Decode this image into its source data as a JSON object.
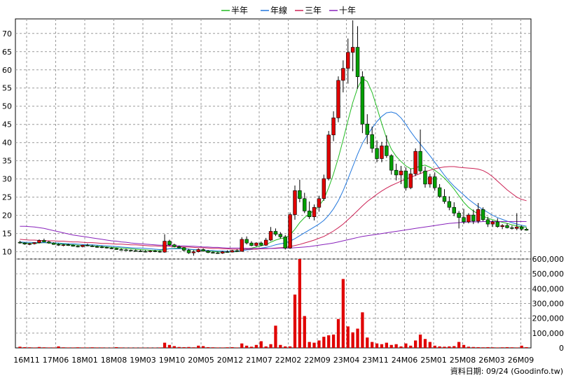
{
  "chart_data": {
    "type": "candlestick",
    "legend": [
      {
        "label": "半年",
        "color": "#22bb22"
      },
      {
        "label": "年線",
        "color": "#2277dd"
      },
      {
        "label": "三年",
        "color": "#cc2255"
      },
      {
        "label": "十年",
        "color": "#8822bb"
      }
    ],
    "x_tick_labels": [
      "16M11",
      "17M06",
      "18M01",
      "18M08",
      "19M03",
      "19M10",
      "20M05",
      "20M12",
      "21M07",
      "22M02",
      "22M09",
      "23M04",
      "23M11",
      "24M06",
      "25M01",
      "25M08",
      "26M03",
      "26M09"
    ],
    "price_axis": {
      "ticks": [
        10,
        15,
        20,
        25,
        30,
        35,
        40,
        45,
        50,
        55,
        60,
        65,
        70
      ],
      "ylim": [
        8,
        74
      ]
    },
    "volume_axis": {
      "tick_labels": [
        "0",
        "100,000",
        "200,000",
        "300,000",
        "400,000",
        "500,000",
        "600,000"
      ],
      "ylim": [
        0,
        600000
      ]
    },
    "footer": "資料日期: 09/24  (Goodinfo.tw)",
    "candles": [
      [
        12.6,
        13.0,
        12.2,
        12.4
      ],
      [
        12.4,
        12.6,
        11.9,
        12.1
      ],
      [
        12.1,
        12.4,
        11.8,
        12.2
      ],
      [
        12.2,
        12.6,
        12.0,
        12.5
      ],
      [
        12.5,
        13.4,
        12.3,
        13.1
      ],
      [
        13.1,
        13.6,
        12.6,
        12.7
      ],
      [
        12.7,
        13.0,
        12.2,
        12.4
      ],
      [
        12.4,
        12.6,
        11.9,
        12.0
      ],
      [
        12.0,
        12.3,
        11.6,
        11.8
      ],
      [
        11.8,
        12.1,
        11.5,
        11.9
      ],
      [
        11.9,
        12.2,
        11.6,
        11.8
      ],
      [
        11.8,
        12.0,
        11.4,
        11.5
      ],
      [
        11.5,
        11.8,
        11.2,
        11.4
      ],
      [
        11.4,
        11.9,
        11.2,
        11.8
      ],
      [
        11.8,
        12.2,
        11.5,
        11.6
      ],
      [
        11.6,
        11.9,
        11.3,
        11.4
      ],
      [
        11.4,
        11.7,
        11.1,
        11.3
      ],
      [
        11.3,
        11.6,
        11.0,
        11.2
      ],
      [
        11.2,
        11.4,
        10.9,
        11.0
      ],
      [
        11.0,
        11.3,
        10.7,
        10.9
      ],
      [
        10.9,
        11.1,
        10.5,
        10.6
      ],
      [
        10.6,
        10.9,
        10.3,
        10.5
      ],
      [
        10.5,
        10.8,
        10.2,
        10.4
      ],
      [
        10.4,
        10.6,
        10.1,
        10.3
      ],
      [
        10.3,
        10.6,
        10.0,
        10.2
      ],
      [
        10.2,
        10.5,
        9.9,
        10.1
      ],
      [
        10.1,
        10.4,
        9.8,
        10.0
      ],
      [
        10.0,
        10.4,
        9.8,
        10.2
      ],
      [
        10.2,
        10.5,
        9.9,
        10.1
      ],
      [
        10.1,
        10.4,
        9.7,
        9.9
      ],
      [
        9.9,
        14.8,
        9.7,
        12.9
      ],
      [
        12.9,
        13.3,
        11.6,
        11.9
      ],
      [
        11.9,
        12.2,
        11.2,
        11.4
      ],
      [
        11.4,
        11.7,
        10.9,
        11.1
      ],
      [
        11.1,
        11.3,
        10.1,
        10.4
      ],
      [
        10.4,
        10.8,
        9.4,
        9.7
      ],
      [
        9.7,
        10.4,
        8.9,
        10.0
      ],
      [
        10.0,
        10.9,
        9.8,
        10.6
      ],
      [
        10.6,
        10.9,
        10.0,
        10.2
      ],
      [
        10.2,
        10.5,
        9.6,
        9.8
      ],
      [
        9.8,
        10.1,
        9.5,
        9.7
      ],
      [
        9.7,
        10.0,
        9.4,
        9.6
      ],
      [
        9.6,
        10.2,
        9.4,
        10.0
      ],
      [
        10.0,
        10.4,
        9.7,
        9.9
      ],
      [
        9.9,
        10.5,
        9.8,
        10.3
      ],
      [
        10.3,
        10.7,
        9.9,
        10.1
      ],
      [
        10.1,
        14.0,
        10.0,
        13.4
      ],
      [
        13.4,
        14.2,
        12.0,
        12.4
      ],
      [
        12.4,
        12.9,
        11.5,
        11.7
      ],
      [
        11.7,
        12.6,
        11.4,
        12.4
      ],
      [
        12.4,
        12.8,
        11.6,
        11.8
      ],
      [
        11.8,
        13.8,
        11.6,
        13.2
      ],
      [
        13.2,
        16.8,
        12.9,
        15.6
      ],
      [
        15.6,
        16.4,
        14.3,
        14.8
      ],
      [
        14.8,
        15.4,
        13.6,
        14.1
      ],
      [
        14.1,
        14.6,
        10.6,
        11.0
      ],
      [
        11.0,
        20.8,
        10.8,
        20.2
      ],
      [
        20.2,
        28.2,
        18.8,
        26.8
      ],
      [
        26.8,
        29.8,
        23.6,
        24.6
      ],
      [
        24.6,
        26.2,
        20.6,
        21.2
      ],
      [
        21.2,
        23.8,
        19.0,
        19.6
      ],
      [
        19.6,
        23.0,
        18.6,
        22.2
      ],
      [
        22.2,
        25.4,
        21.0,
        24.6
      ],
      [
        24.6,
        31.2,
        24.0,
        30.1
      ],
      [
        30.1,
        43.2,
        29.6,
        42.1
      ],
      [
        42.1,
        48.6,
        40.4,
        46.8
      ],
      [
        46.8,
        58.2,
        45.6,
        57.1
      ],
      [
        57.1,
        62.6,
        53.8,
        60.4
      ],
      [
        60.4,
        68.6,
        56.2,
        64.8
      ],
      [
        64.8,
        73.6,
        59.6,
        66.2
      ],
      [
        66.2,
        72.0,
        54.8,
        58.1
      ],
      [
        58.1,
        59.6,
        42.6,
        45.1
      ],
      [
        45.1,
        47.8,
        39.6,
        42.2
      ],
      [
        42.2,
        44.4,
        37.2,
        38.4
      ],
      [
        38.4,
        40.6,
        34.6,
        35.6
      ],
      [
        35.6,
        40.2,
        34.6,
        39.1
      ],
      [
        39.1,
        42.0,
        35.8,
        36.4
      ],
      [
        36.4,
        36.8,
        31.2,
        32.4
      ],
      [
        32.4,
        34.2,
        29.6,
        31.1
      ],
      [
        31.1,
        33.6,
        28.6,
        32.2
      ],
      [
        32.2,
        33.2,
        26.8,
        27.6
      ],
      [
        27.6,
        32.8,
        27.2,
        31.4
      ],
      [
        31.4,
        38.4,
        30.8,
        37.6
      ],
      [
        37.6,
        43.6,
        31.4,
        32.2
      ],
      [
        32.2,
        33.4,
        27.6,
        28.6
      ],
      [
        28.6,
        31.4,
        27.6,
        30.6
      ],
      [
        30.6,
        31.8,
        26.8,
        27.6
      ],
      [
        27.6,
        28.6,
        24.8,
        25.2
      ],
      [
        25.2,
        27.2,
        23.2,
        23.8
      ],
      [
        23.8,
        25.2,
        21.4,
        22.2
      ],
      [
        22.2,
        23.6,
        19.8,
        20.6
      ],
      [
        20.6,
        21.2,
        16.4,
        19.4
      ],
      [
        19.4,
        21.8,
        17.6,
        18.2
      ],
      [
        18.2,
        20.6,
        17.8,
        20.1
      ],
      [
        20.1,
        21.6,
        17.6,
        18.4
      ],
      [
        18.4,
        23.4,
        17.8,
        21.6
      ],
      [
        21.6,
        22.2,
        18.4,
        18.8
      ],
      [
        18.8,
        19.6,
        16.8,
        17.6
      ],
      [
        17.6,
        18.6,
        16.8,
        18.2
      ],
      [
        18.2,
        19.2,
        16.6,
        16.9
      ],
      [
        16.9,
        17.6,
        16.2,
        17.2
      ],
      [
        17.2,
        17.8,
        16.4,
        16.6
      ],
      [
        16.6,
        17.2,
        16.1,
        16.4
      ],
      [
        16.4,
        20.6,
        15.9,
        16.8
      ],
      [
        16.8,
        17.2,
        15.8,
        16.2
      ],
      [
        16.2,
        16.6,
        15.8,
        15.9
      ]
    ],
    "volumes": [
      8000,
      5000,
      4000,
      3000,
      6000,
      4000,
      3000,
      3000,
      10000,
      4000,
      3000,
      3000,
      4000,
      3000,
      3000,
      4000,
      3000,
      3000,
      2000,
      2000,
      5000,
      3000,
      2000,
      2000,
      2000,
      2000,
      2000,
      2000,
      2000,
      3000,
      35000,
      20000,
      12000,
      6000,
      5000,
      6000,
      4000,
      15000,
      12000,
      5000,
      4000,
      3000,
      3000,
      4000,
      5000,
      3000,
      30000,
      15000,
      8000,
      20000,
      45000,
      10000,
      25000,
      150000,
      20000,
      10000,
      10000,
      360000,
      600000,
      215000,
      40000,
      35000,
      50000,
      75000,
      85000,
      90000,
      195000,
      465000,
      145000,
      105000,
      130000,
      240000,
      70000,
      40000,
      30000,
      25000,
      35000,
      20000,
      25000,
      10000,
      30000,
      15000,
      50000,
      90000,
      60000,
      40000,
      15000,
      10000,
      8000,
      10000,
      12000,
      40000,
      20000,
      8000,
      6000,
      5000,
      4000,
      5000,
      4000,
      3000,
      4000,
      5000,
      4000,
      3000,
      15000,
      5000
    ],
    "ma_half": [
      12.5,
      12.4,
      12.3,
      12.3,
      12.4,
      12.5,
      12.4,
      12.3,
      12.2,
      12.1,
      12.0,
      11.9,
      11.8,
      11.7,
      11.7,
      11.6,
      11.5,
      11.4,
      11.3,
      11.2,
      11.1,
      11.0,
      10.9,
      10.8,
      10.7,
      10.6,
      10.5,
      10.4,
      10.3,
      10.3,
      10.6,
      10.8,
      10.9,
      11.0,
      10.9,
      10.7,
      10.5,
      10.4,
      10.3,
      10.2,
      10.1,
      10.0,
      9.9,
      9.9,
      10.0,
      10.0,
      10.4,
      10.8,
      11.0,
      11.3,
      11.6,
      12.0,
      12.6,
      13.2,
      13.6,
      13.8,
      14.6,
      16.2,
      18.0,
      19.4,
      20.4,
      21.4,
      22.6,
      24.4,
      27.6,
      31.4,
      35.8,
      40.8,
      46.0,
      51.0,
      55.0,
      57.6,
      56.8,
      53.8,
      49.6,
      45.2,
      41.2,
      38.2,
      36.2,
      34.8,
      33.6,
      32.8,
      33.0,
      33.6,
      33.8,
      33.2,
      32.4,
      31.4,
      30.2,
      28.8,
      27.2,
      25.4,
      23.6,
      22.2,
      21.2,
      20.4,
      19.8,
      19.2,
      18.8,
      18.4,
      18.1,
      17.8,
      17.4,
      17.1,
      16.9,
      16.7
    ],
    "ma_year": [
      12.7,
      12.6,
      12.6,
      12.5,
      12.5,
      12.5,
      12.5,
      12.4,
      12.4,
      12.3,
      12.2,
      12.2,
      12.1,
      12.0,
      11.9,
      11.9,
      11.8,
      11.7,
      11.6,
      11.5,
      11.4,
      11.3,
      11.2,
      11.1,
      11.0,
      11.0,
      10.9,
      10.8,
      10.7,
      10.6,
      10.7,
      10.8,
      10.8,
      10.8,
      10.8,
      10.7,
      10.6,
      10.5,
      10.4,
      10.3,
      10.3,
      10.2,
      10.2,
      10.1,
      10.1,
      10.1,
      10.3,
      10.5,
      10.6,
      10.8,
      11.0,
      11.2,
      11.5,
      11.9,
      12.2,
      12.4,
      12.9,
      13.6,
      14.4,
      15.2,
      16.0,
      16.8,
      17.6,
      18.6,
      20.0,
      21.8,
      24.0,
      26.8,
      30.0,
      33.4,
      36.8,
      39.8,
      42.0,
      44.0,
      45.8,
      47.2,
      48.2,
      48.4,
      48.0,
      46.8,
      45.0,
      43.0,
      41.2,
      39.6,
      38.0,
      36.4,
      34.6,
      32.8,
      31.0,
      29.4,
      28.0,
      26.8,
      25.6,
      24.4,
      23.4,
      22.4,
      21.6,
      20.8,
      20.0,
      19.4,
      18.9,
      18.4,
      18.0,
      17.6,
      17.3,
      17.0
    ],
    "ma_three": [
      13.4,
      13.3,
      13.2,
      13.2,
      13.1,
      13.1,
      13.0,
      13.0,
      12.9,
      12.9,
      12.8,
      12.7,
      12.7,
      12.6,
      12.5,
      12.5,
      12.4,
      12.3,
      12.3,
      12.2,
      12.1,
      12.1,
      12.0,
      11.9,
      11.9,
      11.8,
      11.7,
      11.6,
      11.6,
      11.5,
      11.5,
      11.5,
      11.4,
      11.4,
      11.3,
      11.3,
      11.2,
      11.1,
      11.1,
      11.0,
      10.9,
      10.9,
      10.8,
      10.8,
      10.7,
      10.7,
      10.7,
      10.7,
      10.7,
      10.7,
      10.8,
      10.8,
      10.9,
      11.0,
      11.1,
      11.2,
      11.4,
      11.7,
      12.0,
      12.4,
      12.8,
      13.2,
      13.7,
      14.2,
      14.9,
      15.7,
      16.6,
      17.6,
      18.8,
      20.0,
      21.3,
      22.6,
      23.8,
      24.8,
      25.8,
      26.7,
      27.5,
      28.2,
      28.8,
      29.4,
      30.0,
      30.5,
      31.0,
      31.5,
      32.0,
      32.4,
      32.8,
      33.1,
      33.3,
      33.4,
      33.4,
      33.2,
      33.1,
      33.0,
      32.9,
      32.7,
      32.3,
      31.6,
      30.6,
      29.4,
      28.2,
      27.0,
      26.0,
      25.0,
      24.4,
      24.0
    ],
    "ma_ten": [
      17.0,
      17.0,
      16.9,
      16.8,
      16.6,
      16.4,
      16.1,
      15.8,
      15.5,
      15.2,
      14.9,
      14.6,
      14.4,
      14.2,
      14.0,
      13.8,
      13.6,
      13.4,
      13.2,
      13.0,
      12.9,
      12.7,
      12.6,
      12.4,
      12.3,
      12.2,
      12.1,
      12.0,
      11.9,
      11.8,
      11.8,
      11.7,
      11.7,
      11.6,
      11.6,
      11.5,
      11.5,
      11.4,
      11.3,
      11.3,
      11.2,
      11.2,
      11.1,
      11.0,
      11.0,
      11.0,
      11.0,
      10.9,
      10.9,
      10.9,
      10.9,
      10.9,
      10.9,
      10.9,
      11.0,
      11.0,
      11.0,
      11.1,
      11.2,
      11.3,
      11.4,
      11.6,
      11.8,
      12.0,
      12.2,
      12.4,
      12.7,
      13.0,
      13.3,
      13.6,
      13.9,
      14.2,
      14.4,
      14.6,
      14.8,
      15.0,
      15.2,
      15.4,
      15.6,
      15.8,
      16.0,
      16.2,
      16.4,
      16.6,
      16.8,
      17.0,
      17.2,
      17.4,
      17.6,
      17.8,
      17.9,
      18.0,
      18.1,
      18.2,
      18.2,
      18.2,
      18.3,
      18.3,
      18.3,
      18.3,
      18.3,
      18.3,
      18.3,
      18.3,
      18.3,
      18.3
    ]
  }
}
